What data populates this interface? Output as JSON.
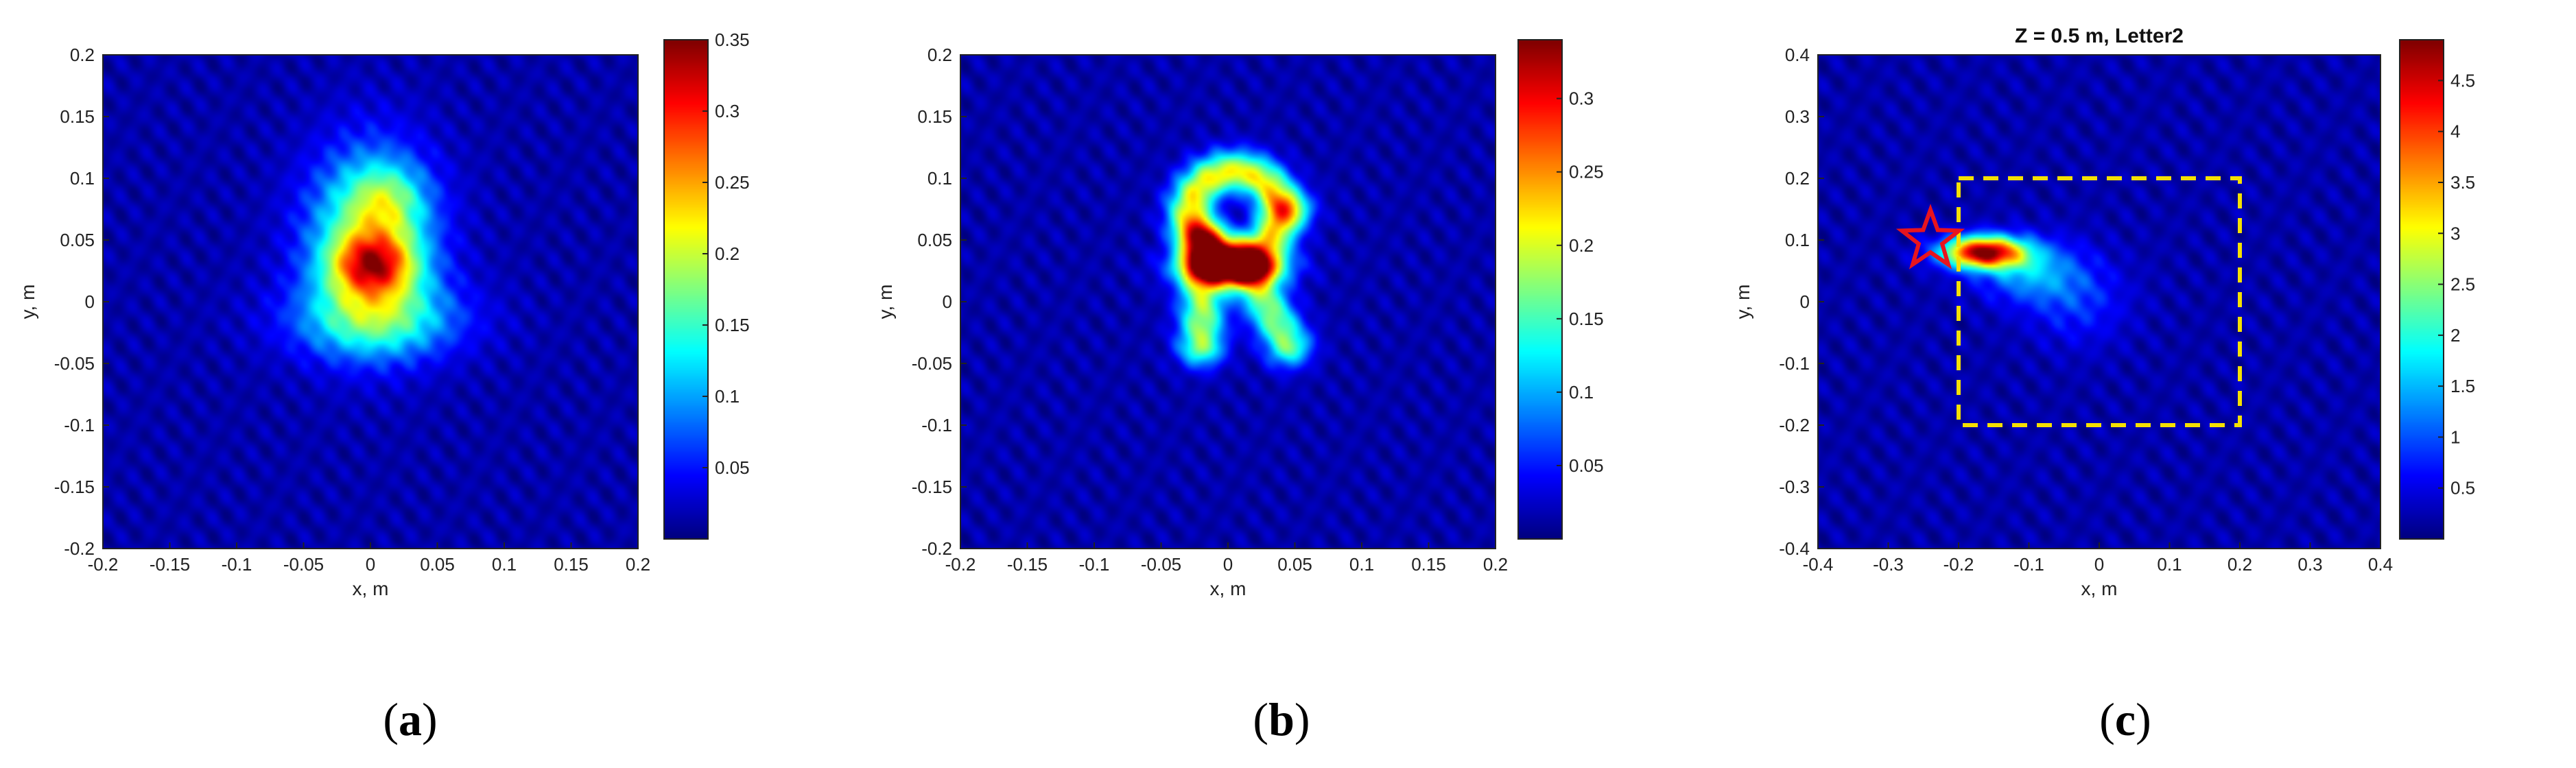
{
  "chart_data": [
    {
      "type": "heatmap",
      "panel_label": "a",
      "title": "",
      "xlabel": "x, m",
      "ylabel": "y, m",
      "xlim": [
        -0.2,
        0.2
      ],
      "ylim": [
        -0.2,
        0.2
      ],
      "xticks": [
        -0.2,
        -0.15,
        -0.1,
        -0.05,
        0,
        0.05,
        0.1,
        0.15,
        0.2
      ],
      "yticks": [
        -0.2,
        -0.15,
        -0.1,
        -0.05,
        0,
        0.05,
        0.1,
        0.15,
        0.2
      ],
      "xtick_labels": [
        "-0.2",
        "-0.15",
        "-0.1",
        "-0.05",
        "0",
        "0.05",
        "0.1",
        "0.15",
        "0.2"
      ],
      "ytick_labels": [
        "-0.2",
        "-0.15",
        "-0.1",
        "-0.05",
        "0",
        "0.05",
        "0.1",
        "0.15",
        "0.2"
      ],
      "colormap": "jet",
      "colorbar": {
        "min": 0,
        "max": 0.35,
        "ticks": [
          0.05,
          0.1,
          0.15,
          0.2,
          0.25,
          0.3,
          0.35
        ],
        "tick_labels": [
          "0.05",
          "0.1",
          "0.15",
          "0.2",
          "0.25",
          "0.3",
          "0.35"
        ]
      },
      "features": [
        {
          "shape": "blob",
          "x": 0.0,
          "y": 0.05,
          "sx": 0.032,
          "sy": 0.05,
          "value": 0.17
        },
        {
          "shape": "blob",
          "x": 0.002,
          "y": 0.03,
          "sx": 0.022,
          "sy": 0.017,
          "value": 0.17
        },
        {
          "shape": "blob",
          "x": 0.013,
          "y": 0.083,
          "sx": 0.02,
          "sy": 0.02,
          "value": 0.07
        },
        {
          "shape": "blob",
          "x": 0.005,
          "y": -0.015,
          "sx": 0.045,
          "sy": 0.022,
          "value": 0.11
        }
      ]
    },
    {
      "type": "heatmap",
      "panel_label": "b",
      "title": "",
      "xlabel": "x, m",
      "ylabel": "y, m",
      "xlim": [
        -0.2,
        0.2
      ],
      "ylim": [
        -0.2,
        0.2
      ],
      "xticks": [
        -0.2,
        -0.15,
        -0.1,
        -0.05,
        0,
        0.05,
        0.1,
        0.15,
        0.2
      ],
      "yticks": [
        -0.2,
        -0.15,
        -0.1,
        -0.05,
        0,
        0.05,
        0.1,
        0.15,
        0.2
      ],
      "xtick_labels": [
        "-0.2",
        "-0.15",
        "-0.1",
        "-0.05",
        "0",
        "0.05",
        "0.1",
        "0.15",
        "0.2"
      ],
      "ytick_labels": [
        "-0.2",
        "-0.15",
        "-0.1",
        "-0.05",
        "0",
        "0.05",
        "0.1",
        "0.15",
        "0.2"
      ],
      "colormap": "jet",
      "colorbar": {
        "min": 0,
        "max": 0.34,
        "ticks": [
          0.05,
          0.1,
          0.15,
          0.2,
          0.25,
          0.3
        ],
        "tick_labels": [
          "0.05",
          "0.1",
          "0.15",
          "0.2",
          "0.25",
          "0.3"
        ]
      },
      "features": [
        {
          "shape": "ring",
          "x": 0.005,
          "y": 0.072,
          "r": 0.033,
          "width": 0.012,
          "value": 0.2
        },
        {
          "shape": "blob",
          "x": 0.003,
          "y": 0.028,
          "sx": 0.025,
          "sy": 0.01,
          "value": 0.32
        },
        {
          "shape": "blob",
          "x": 0.047,
          "y": 0.075,
          "sx": 0.012,
          "sy": 0.01,
          "value": 0.1
        },
        {
          "shape": "segment",
          "x1": -0.018,
          "y1": 0.05,
          "x2": -0.02,
          "y2": -0.035,
          "width": 0.012,
          "value": 0.17
        },
        {
          "shape": "segment",
          "x1": 0.018,
          "y1": 0.02,
          "x2": 0.045,
          "y2": -0.035,
          "width": 0.012,
          "value": 0.16
        }
      ]
    },
    {
      "type": "heatmap",
      "panel_label": "c",
      "title": "Z = 0.5 m, Letter2",
      "xlabel": "x, m",
      "ylabel": "y, m",
      "xlim": [
        -0.4,
        0.4
      ],
      "ylim": [
        -0.4,
        0.4
      ],
      "xticks": [
        -0.4,
        -0.3,
        -0.2,
        -0.1,
        0,
        0.1,
        0.2,
        0.3,
        0.4
      ],
      "yticks": [
        -0.4,
        -0.3,
        -0.2,
        -0.1,
        0,
        0.1,
        0.2,
        0.3,
        0.4
      ],
      "xtick_labels": [
        "-0.4",
        "-0.3",
        "-0.2",
        "-0.1",
        "0",
        "0.1",
        "0.2",
        "0.3",
        "0.4"
      ],
      "ytick_labels": [
        "-0.4",
        "-0.3",
        "-0.2",
        "-0.1",
        "0",
        "0.1",
        "0.2",
        "0.3",
        "0.4"
      ],
      "colormap": "jet",
      "colorbar": {
        "min": 0,
        "max": 4.9,
        "ticks": [
          0.5,
          1,
          1.5,
          2,
          2.5,
          3,
          3.5,
          4,
          4.5
        ],
        "tick_labels": [
          "0.5",
          "1",
          "1.5",
          "2",
          "2.5",
          "3",
          "3.5",
          "4",
          "4.5"
        ]
      },
      "features": [
        {
          "shape": "blob",
          "x": -0.165,
          "y": 0.08,
          "sx": 0.04,
          "sy": 0.018,
          "value": 4.6
        },
        {
          "shape": "blob",
          "x": -0.1,
          "y": 0.05,
          "sx": 0.05,
          "sy": 0.035,
          "value": 1.2
        },
        {
          "shape": "blob",
          "x": -0.03,
          "y": 0.0,
          "sx": 0.05,
          "sy": 0.05,
          "value": 0.6
        }
      ],
      "annotations": [
        {
          "type": "rectangle",
          "style": "dashed",
          "color": "#f5e000",
          "x0": -0.2,
          "x1": 0.2,
          "y0": -0.2,
          "y1": 0.2
        },
        {
          "type": "star-marker",
          "color": "#e8141e",
          "x": -0.24,
          "y": 0.1
        }
      ]
    }
  ]
}
